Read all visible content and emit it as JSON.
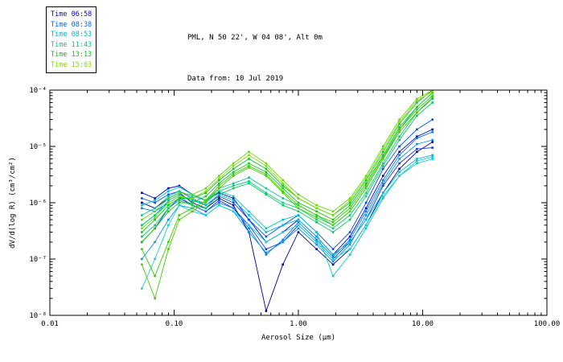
{
  "header": {
    "line1": "PML, N 50 22', W 04 08', Alt 0m",
    "line2": "Data from: 10 Jul 2019"
  },
  "legend": {
    "entries": [
      {
        "label": "Time 06:58",
        "color": "#0000e1"
      },
      {
        "label": "Time 08:38",
        "color": "#0064f0"
      },
      {
        "label": "Time 08:53",
        "color": "#00b4d2"
      },
      {
        "label": "Time 11:43",
        "color": "#00c87d"
      },
      {
        "label": "Time 13:13",
        "color": "#00c814"
      },
      {
        "label": "Time 15:03",
        "color": "#82dc00"
      }
    ]
  },
  "chart_data": {
    "type": "line",
    "title": "PML, N 50 22', W 04 08', Alt 0m",
    "subtitle": "Data from: 10 Jul 2019",
    "xlabel": "Aerosol Size (μm)",
    "ylabel": "dV/d(log R) (cm³/cm²)",
    "xscale": "log",
    "yscale": "log",
    "xlim": [
      0.01,
      100
    ],
    "ylim": [
      1e-08,
      0.0001
    ],
    "x_tick_labels": [
      "0.01",
      "0.10",
      "1.00",
      "10.00",
      "100.00"
    ],
    "y_tick_labels": [
      "10⁻⁸",
      "10⁻⁷",
      "10⁻⁶",
      "10⁻⁵",
      "10⁻⁴"
    ],
    "legend_position": "top-left",
    "grid": false,
    "marker": "square",
    "x": [
      0.055,
      0.07,
      0.09,
      0.11,
      0.14,
      0.18,
      0.23,
      0.3,
      0.4,
      0.55,
      0.75,
      1.0,
      1.4,
      1.9,
      2.6,
      3.5,
      4.8,
      6.5,
      9.0,
      12.0
    ],
    "series": [
      {
        "name": "Time 06:58 run1",
        "color": "#000096",
        "values": [
          1e-06,
          8e-07,
          1.2e-06,
          1.5e-06,
          1e-06,
          8e-07,
          1.2e-06,
          9e-07,
          3e-07,
          1.2e-08,
          8e-08,
          3e-07,
          1.5e-07,
          8e-08,
          1.5e-07,
          4e-07,
          1.5e-06,
          4e-06,
          8e-06,
          1.2e-05
        ]
      },
      {
        "name": "Time 06:58 run2",
        "color": "#0000dc",
        "values": [
          1.5e-06,
          1.2e-06,
          1.8e-06,
          2e-06,
          1.4e-06,
          1.1e-06,
          1.5e-06,
          1.2e-06,
          5e-07,
          2e-07,
          3e-07,
          5e-07,
          2.5e-07,
          1.2e-07,
          2.5e-07,
          8e-07,
          3e-06,
          8e-06,
          1.5e-05,
          2e-05
        ]
      },
      {
        "name": "Time 06:58 run3",
        "color": "#1e32e6",
        "values": [
          2e-07,
          3.5e-07,
          8e-07,
          1.2e-06,
          9e-07,
          7e-07,
          1.1e-06,
          8e-07,
          4e-07,
          1.5e-07,
          2e-07,
          4e-07,
          2e-07,
          1e-07,
          2e-07,
          5e-07,
          2e-06,
          5e-06,
          9e-06,
          9.5e-06
        ]
      },
      {
        "name": "Time 08:38 run1",
        "color": "#0050f0",
        "values": [
          1.2e-06,
          1e-06,
          1.4e-06,
          1.6e-06,
          1.2e-06,
          9e-07,
          1.3e-06,
          1e-06,
          5e-07,
          2.5e-07,
          4e-07,
          6e-07,
          3e-07,
          1.5e-07,
          3e-07,
          1e-06,
          4e-06,
          1e-05,
          2e-05,
          3e-05
        ]
      },
      {
        "name": "Time 08:38 run2",
        "color": "#0078f0",
        "values": [
          8e-07,
          7e-07,
          1e-06,
          1.3e-06,
          9e-07,
          7e-07,
          1e-06,
          8e-07,
          3.5e-07,
          1.2e-07,
          2.2e-07,
          4.5e-07,
          2.2e-07,
          1.1e-07,
          2.2e-07,
          7e-07,
          2.5e-06,
          7e-06,
          1.4e-05,
          1.8e-05
        ]
      },
      {
        "name": "Time 08:38 run3",
        "color": "#0096e6",
        "values": [
          1e-07,
          2e-07,
          5e-07,
          9e-07,
          8e-07,
          6e-07,
          9e-07,
          7e-07,
          3e-07,
          1.3e-07,
          2e-07,
          3.5e-07,
          1.8e-07,
          9e-08,
          1.8e-07,
          6e-07,
          2.2e-06,
          6e-06,
          1.1e-05,
          1.3e-05
        ]
      },
      {
        "name": "Time 08:53 run1",
        "color": "#00b4dc",
        "values": [
          4e-07,
          6e-07,
          1.1e-06,
          1.4e-06,
          1.1e-06,
          9e-07,
          1.4e-06,
          1.1e-06,
          6e-07,
          3e-07,
          4e-07,
          5e-07,
          2.5e-07,
          1.2e-07,
          2e-07,
          5e-07,
          1.5e-06,
          3.5e-06,
          6e-06,
          7e-06
        ]
      },
      {
        "name": "Time 08:53 run2",
        "color": "#00c8c8",
        "values": [
          9e-07,
          1.1e-06,
          1.6e-06,
          1.9e-06,
          1.4e-06,
          1.1e-06,
          1.6e-06,
          1.3e-06,
          7e-07,
          3.5e-07,
          5e-07,
          6e-07,
          3e-07,
          5e-08,
          1.2e-07,
          3.5e-07,
          1.2e-06,
          3e-06,
          5e-06,
          6e-06
        ]
      },
      {
        "name": "Time 08:53 run3",
        "color": "#14d2d2",
        "values": [
          3e-08,
          1e-07,
          4e-07,
          9e-07,
          7e-07,
          6e-07,
          9e-07,
          7e-07,
          4e-07,
          2e-07,
          3e-07,
          4e-07,
          2e-07,
          1e-07,
          1.5e-07,
          4e-07,
          1.3e-06,
          3e-06,
          5.5e-06,
          6.5e-06
        ]
      },
      {
        "name": "Time 11:43 run1",
        "color": "#00c896",
        "values": [
          6e-07,
          8e-07,
          1.3e-06,
          1.6e-06,
          1.3e-06,
          1.1e-06,
          1.8e-06,
          2.2e-06,
          2.8e-06,
          1.8e-06,
          1.2e-06,
          9e-07,
          6e-07,
          4e-07,
          7e-07,
          1.8e-06,
          6e-06,
          2e-05,
          5e-05,
          9e-05
        ]
      },
      {
        "name": "Time 11:43 run2",
        "color": "#00cd78",
        "values": [
          4e-07,
          6e-07,
          1e-06,
          1.3e-06,
          1.1e-06,
          1e-06,
          1.6e-06,
          2e-06,
          2.4e-06,
          1.5e-06,
          1e-06,
          8e-07,
          5e-07,
          3.5e-07,
          6e-07,
          1.5e-06,
          5e-06,
          1.5e-05,
          4e-05,
          7e-05
        ]
      },
      {
        "name": "Time 11:43 run3",
        "color": "#0ac85a",
        "values": [
          2.5e-07,
          4e-07,
          8e-07,
          1.1e-06,
          9e-07,
          8e-07,
          1.4e-06,
          1.8e-06,
          2.2e-06,
          1.4e-06,
          9e-07,
          7e-07,
          4.5e-07,
          3e-07,
          5e-07,
          1.3e-06,
          4.5e-06,
          1.3e-05,
          3.5e-05,
          6e-05
        ]
      },
      {
        "name": "Time 13:13 run1",
        "color": "#00c828",
        "values": [
          3e-07,
          5e-07,
          9e-07,
          1.2e-06,
          1.2e-06,
          1.5e-06,
          2.5e-06,
          4e-06,
          6e-06,
          4e-06,
          2e-06,
          1.2e-06,
          8e-07,
          6e-07,
          1e-06,
          2.5e-06,
          8e-06,
          2.5e-05,
          6e-05,
          0.0001
        ]
      },
      {
        "name": "Time 13:13 run2",
        "color": "#14c814",
        "values": [
          2e-07,
          3.5e-07,
          7e-07,
          1e-06,
          1e-06,
          1.3e-06,
          2.2e-06,
          3.5e-06,
          5e-06,
          3.5e-06,
          1.8e-06,
          1e-06,
          7e-07,
          5e-07,
          9e-07,
          2.2e-06,
          7e-06,
          2.2e-05,
          5e-05,
          9e-05
        ]
      },
      {
        "name": "Time 13:13 run3",
        "color": "#32d200",
        "values": [
          1.5e-07,
          5e-08,
          2e-07,
          6e-07,
          8e-07,
          1.1e-06,
          2e-06,
          3.2e-06,
          4.5e-06,
          3.2e-06,
          1.6e-06,
          9e-07,
          6e-07,
          4.5e-07,
          8e-07,
          2e-06,
          6.5e-06,
          2e-05,
          4.5e-05,
          8e-05
        ]
      },
      {
        "name": "Time 15:03 run1",
        "color": "#64d700",
        "values": [
          5e-07,
          7e-07,
          1.2e-06,
          1.5e-06,
          1.4e-06,
          1.8e-06,
          3e-06,
          5e-06,
          8e-06,
          5e-06,
          2.5e-06,
          1.4e-06,
          9e-07,
          7e-07,
          1.2e-06,
          3e-06,
          1e-05,
          3e-05,
          7e-05,
          0.0001
        ]
      },
      {
        "name": "Time 15:03 run2",
        "color": "#82dc00",
        "values": [
          3.5e-07,
          5.5e-07,
          1e-06,
          1.3e-06,
          1.2e-06,
          1.6e-06,
          2.7e-06,
          4.5e-06,
          7e-06,
          4.5e-06,
          2.2e-06,
          1.2e-06,
          8e-07,
          6e-07,
          1.1e-06,
          2.7e-06,
          9e-06,
          2.7e-05,
          6.5e-05,
          9.5e-05
        ]
      },
      {
        "name": "Time 15:03 run3",
        "color": "#50c800",
        "values": [
          8e-08,
          2e-08,
          1.5e-07,
          5e-07,
          7e-07,
          1e-06,
          1.8e-06,
          3e-06,
          4.2e-06,
          3e-06,
          1.5e-06,
          8e-07,
          5.5e-07,
          4e-07,
          7e-07,
          1.8e-06,
          6e-06,
          1.8e-05,
          4e-05,
          7.5e-05
        ]
      }
    ]
  }
}
